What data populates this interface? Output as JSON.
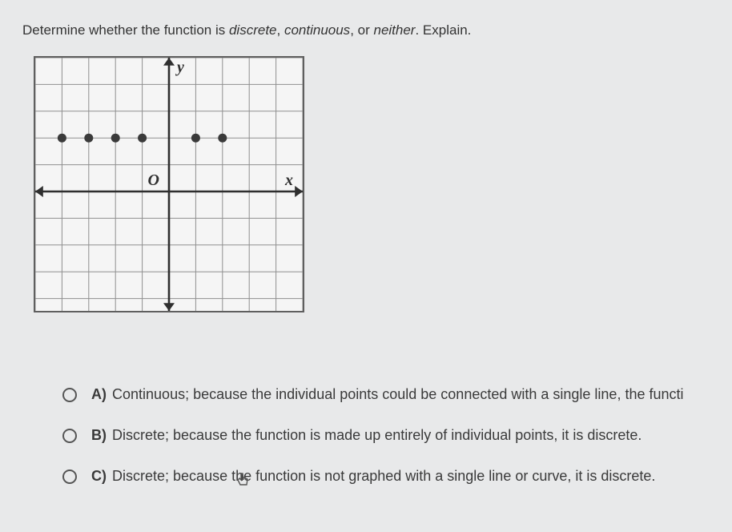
{
  "question": {
    "lead": "Determine whether the function is ",
    "term1": "discrete",
    "sep1": ", ",
    "term2": "continuous",
    "sep2": ", or ",
    "term3": "neither",
    "tail": ". Explain."
  },
  "graph": {
    "background_color": "#f5f5f5",
    "grid_color": "#8f8f8f",
    "border_color": "#5f5f5f",
    "axis_color": "#2f2f2f",
    "cell": 33.4,
    "cols": 10,
    "rows": 10,
    "origin_col": 5,
    "origin_row": 5,
    "labels": {
      "y": "y",
      "x": "x",
      "origin": "O",
      "font_size": 20,
      "font_weight": "bold",
      "font_style": "italic"
    },
    "points": {
      "coords": [
        [
          -4,
          2
        ],
        [
          -3,
          2
        ],
        [
          -2,
          2
        ],
        [
          -1,
          2
        ],
        [
          1,
          2
        ],
        [
          2,
          2
        ]
      ],
      "radius": 5.5,
      "color": "#3a3a3a"
    },
    "axis_width": 2.6,
    "grid_width": 1,
    "arrow_size": 7
  },
  "answers": [
    {
      "key": "A)",
      "text": "Continuous; because the individual points could be connected with a single line, the functi"
    },
    {
      "key": "B)",
      "text": "Discrete; because the function is made up entirely of individual points, it is discrete."
    },
    {
      "key": "C)",
      "text_pre": "Discrete; because ",
      "text_mid": "the",
      "text_post": " function is not graphed with a single line or curve, it is discrete."
    }
  ],
  "colors": {
    "page_bg": "#e8e9ea",
    "text": "#2b2b2b",
    "answer_text": "#3a3a3a"
  }
}
